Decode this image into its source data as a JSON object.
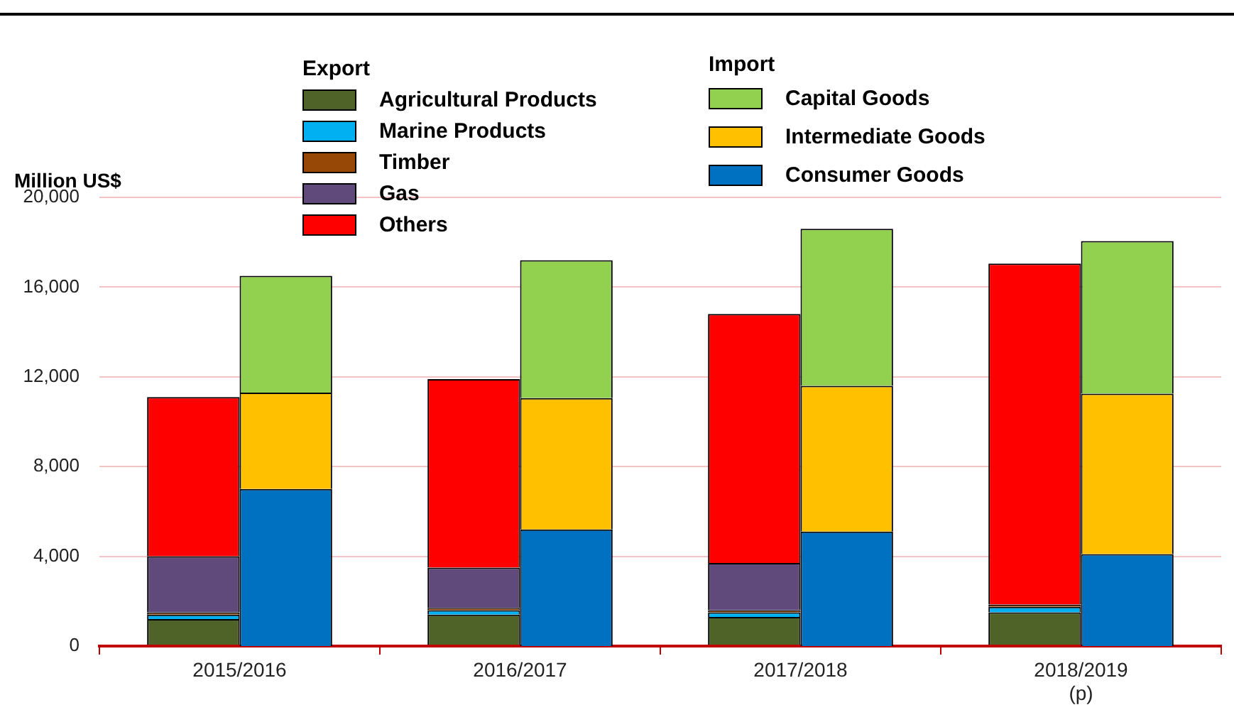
{
  "chart_data": [
    {
      "type": "bar",
      "stacked": true,
      "ylabel": "Million US$",
      "legend_title": "Export",
      "categories": [
        null,
        null,
        null,
        null
      ],
      "series": [
        {
          "name": "Agricultural  Products",
          "color": "#4f6228",
          "values": [
            1200,
            1400,
            1300,
            1500
          ]
        },
        {
          "name": "Marine Products",
          "color": "#00b0f0",
          "values": [
            200,
            200,
            200,
            250
          ]
        },
        {
          "name": "Timber",
          "color": "#974706",
          "values": [
            100,
            100,
            100,
            100
          ]
        },
        {
          "name": "Gas",
          "color": "#604a7b",
          "values": [
            2500,
            1800,
            2100,
            0
          ]
        },
        {
          "name": "Others",
          "color": "#ff0000",
          "values": [
            7100,
            8400,
            11100,
            15200
          ]
        }
      ],
      "ylim": [
        0,
        20000
      ],
      "yticks": [
        0,
        {
          "value": 4000,
          "label": "4,000"
        },
        {
          "value": 8000,
          "label": "8,000"
        },
        {
          "value": 12000,
          "label": "12,000"
        },
        {
          "value": 16000,
          "label": "16,000"
        },
        {
          "value": 20000,
          "label": "20,000"
        }
      ],
      "grid": "y",
      "legend": "top",
      "tick_labels": "y"
    },
    {
      "type": "bar",
      "stacked": true,
      "legend_title": "Import",
      "categories": [
        "2015/2016",
        "2016/2017",
        "2017/2018",
        "2018/2019\n(p)"
      ],
      "series": [
        {
          "name": "Consumer Goods",
          "color": "#0070c0",
          "values": [
            7000,
            5200,
            5100,
            4100
          ]
        },
        {
          "name": "Intermediate  Goods",
          "color": "#ffc000",
          "values": [
            4300,
            5850,
            6500,
            7150
          ]
        },
        {
          "name": "Capital  Goods",
          "color": "#92d050",
          "values": [
            5200,
            6150,
            7000,
            6800
          ]
        }
      ],
      "ylim": [
        0,
        20000
      ],
      "legend": "top",
      "tick_labels": "x"
    }
  ]
}
